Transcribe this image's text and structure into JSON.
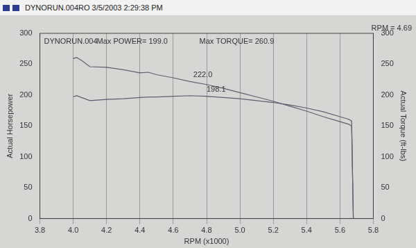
{
  "chart_data": {
    "type": "line",
    "title": "DYNORUN.004RO 3/5/2003 2:29:38 PM",
    "header": [
      "DYNORUN.004",
      "Max POWER= 199.0",
      "Max TORQUE= 260.9"
    ],
    "cursor_label": "RPM = 4.69",
    "x_label": "RPM (x1000)",
    "y_label": "Actual Horsepower",
    "y2_label": "Actual Torque (ft-lbs)",
    "series": [
      {
        "name": "Actual Torque (ft-lbs)",
        "color": "#5a5e6e",
        "axis": "y2",
        "x": [
          4.0,
          4.02,
          4.05,
          4.1,
          4.2,
          4.3,
          4.4,
          4.45,
          4.5,
          4.6,
          4.7,
          4.8,
          4.9,
          5.0,
          5.1,
          5.2,
          5.3,
          5.4,
          5.5,
          5.6,
          5.65,
          5.67,
          5.68
        ],
        "values": [
          259,
          260.9,
          256,
          246,
          245,
          241,
          236,
          237,
          233,
          228,
          222,
          217,
          211,
          204,
          197,
          190,
          182,
          174,
          165,
          157,
          153,
          150,
          0
        ]
      },
      {
        "name": "Actual Horsepower",
        "color": "#5a5e6e",
        "x": [
          4.0,
          4.02,
          4.05,
          4.1,
          4.2,
          4.3,
          4.4,
          4.45,
          4.5,
          4.6,
          4.7,
          4.8,
          4.9,
          5.0,
          5.1,
          5.2,
          5.3,
          5.4,
          5.5,
          5.6,
          5.65,
          5.67,
          5.68
        ],
        "values": [
          197,
          199,
          196,
          191,
          193,
          194,
          196,
          197,
          197,
          198,
          199,
          198.1,
          196,
          194,
          191,
          188,
          184,
          179,
          173,
          165,
          161,
          158,
          0
        ]
      }
    ],
    "annotations": [
      {
        "text": "222.0",
        "x": 4.72,
        "y": 226,
        "axis": "y2"
      },
      {
        "text": "198.1",
        "x": 4.8,
        "y": 203,
        "axis": "y"
      }
    ],
    "xlim": [
      3.8,
      5.8
    ],
    "xticks": [
      3.8,
      {
        "value": 4,
        "label": "4.0"
      },
      4.2,
      4.4,
      4.6,
      4.8,
      {
        "value": 5,
        "label": "5.0"
      },
      5.2,
      5.4,
      5.6,
      5.8
    ],
    "ylim": [
      0,
      300
    ],
    "yticks": [
      0,
      50,
      100,
      150,
      200,
      250,
      300
    ],
    "y2lim": [
      0,
      300
    ],
    "y2ticks": [
      0,
      50,
      100,
      150,
      200,
      250,
      300
    ],
    "grid": true
  }
}
